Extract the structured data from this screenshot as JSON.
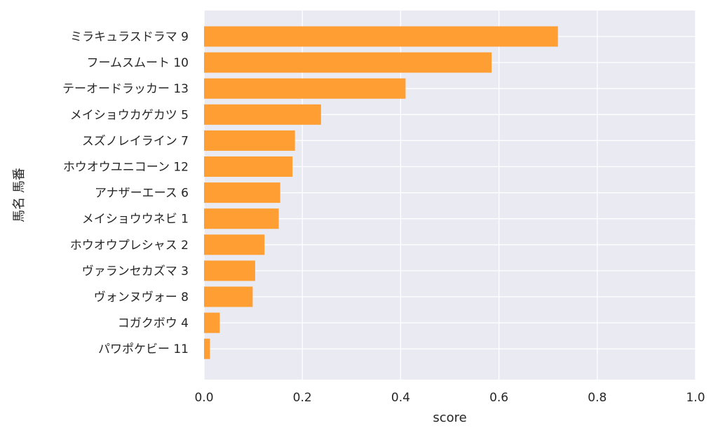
{
  "chart_data": {
    "type": "bar",
    "orientation": "horizontal",
    "categories": [
      "ミラキュラスドラマ 9",
      "フームスムート 10",
      "テーオードラッカー 13",
      "メイショウカゲカツ 5",
      "スズノレイライン 7",
      "ホウオウユニコーン 12",
      "アナザーエース 6",
      "メイショウウネビ 1",
      "ホウオウプレシャス 2",
      "ヴァランセカズマ 3",
      "ヴォンヌヴォー 8",
      "コガクボウ 4",
      "パワポケビー 11"
    ],
    "values": [
      0.72,
      0.585,
      0.41,
      0.238,
      0.185,
      0.18,
      0.155,
      0.152,
      0.123,
      0.104,
      0.099,
      0.032,
      0.012
    ],
    "xlabel": "score",
    "ylabel": "馬名 馬番",
    "xlim": [
      0,
      1.0
    ],
    "xticks": [
      "0.0",
      "0.2",
      "0.4",
      "0.6",
      "0.8",
      "1.0"
    ],
    "grid": true,
    "colors": {
      "bar": "#ff9a28",
      "plot_background": "#eaeaf2",
      "grid": "#ffffff"
    }
  }
}
